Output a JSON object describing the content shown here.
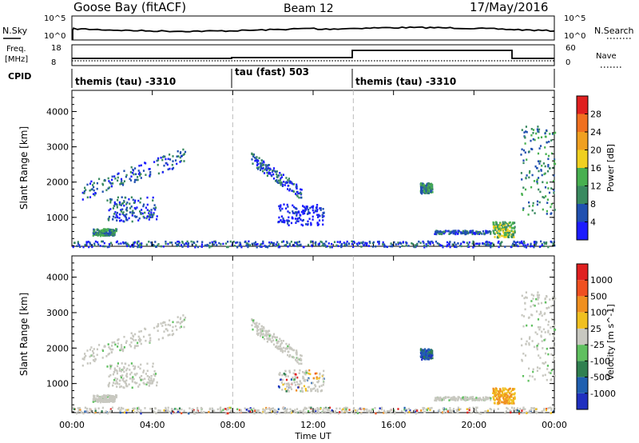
{
  "header": {
    "station": "Goose Bay (fitACF)",
    "beam": "Beam 12",
    "date": "17/May/2016"
  },
  "noise_panel": {
    "left_label": "N.Sky",
    "right_label": "N.Search",
    "left_ticks": [
      "10^5",
      "10^0"
    ],
    "right_ticks": [
      "10^5",
      "10^0"
    ]
  },
  "freq_panel": {
    "left_label_1": "Freq.",
    "left_label_2": "[MHz]",
    "right_label": "Nave",
    "left_ticks": [
      "18",
      "8"
    ],
    "right_ticks": [
      "60",
      "0"
    ]
  },
  "cpid": {
    "label": "CPID",
    "segments": [
      {
        "start_hour": 0,
        "text": "themis (tau) -3310"
      },
      {
        "start_hour": 8,
        "text": "tau (fast) 503"
      },
      {
        "start_hour": 14,
        "text": "themis (tau) -3310"
      }
    ]
  },
  "chart_data": [
    {
      "type": "heatmap",
      "name": "power",
      "ylabel": "Slant Range [km]",
      "y_ticks": [
        1000,
        2000,
        3000,
        4000
      ],
      "ylim": [
        180,
        4600
      ],
      "x_range_hours": [
        0,
        24
      ],
      "colorbar": {
        "label": "Power [dB]",
        "ticks": [
          "4",
          "8",
          "12",
          "16",
          "20",
          "24",
          "28"
        ],
        "colors": [
          "#1c1cff",
          "#2050b0",
          "#3a8a60",
          "#48b050",
          "#f0d020",
          "#f0a020",
          "#f07020",
          "#e02020"
        ]
      },
      "echo_regions": [
        {
          "t": [
            0.5,
            5.6
          ],
          "r": [
            1600,
            3000
          ],
          "level": 1
        },
        {
          "t": [
            1.0,
            2.2
          ],
          "r": [
            500,
            700
          ],
          "level": 2
        },
        {
          "t": [
            1.7,
            4.2
          ],
          "r": [
            900,
            1600
          ],
          "level": 1
        },
        {
          "t": [
            8.9,
            11.4
          ],
          "r": [
            1500,
            2800
          ],
          "level": 1
        },
        {
          "t": [
            10.2,
            12.5
          ],
          "r": [
            800,
            1400
          ],
          "level": 0
        },
        {
          "t": [
            17.3,
            17.9
          ],
          "r": [
            1700,
            2000
          ],
          "level": 2
        },
        {
          "t": [
            18.0,
            20.8
          ],
          "r": [
            550,
            650
          ],
          "level": 1
        },
        {
          "t": [
            20.9,
            22.0
          ],
          "r": [
            450,
            900
          ],
          "level": 3
        },
        {
          "t": [
            22.3,
            24.0
          ],
          "r": [
            1100,
            3600
          ],
          "level": 2
        },
        {
          "t": [
            0.0,
            24.0
          ],
          "r": [
            180,
            350
          ],
          "level": 1
        }
      ]
    },
    {
      "type": "heatmap",
      "name": "velocity",
      "ylabel": "Slant Range [km]",
      "xlabel": "Time UT",
      "y_ticks": [
        1000,
        2000,
        3000,
        4000
      ],
      "ylim": [
        180,
        4600
      ],
      "x_ticks": [
        "00:00",
        "04:00",
        "08:00",
        "12:00",
        "16:00",
        "20:00",
        "00:00"
      ],
      "colorbar": {
        "label": "Velocity [m s^-1]",
        "ticks": [
          "1000",
          "500",
          "100",
          "25",
          "-25",
          "-100",
          "-500",
          "-1000"
        ],
        "colors": [
          "#2030c0",
          "#2060b0",
          "#308050",
          "#60c060",
          "#c8c8c0",
          "#f0c020",
          "#f09020",
          "#f05020",
          "#e02020"
        ]
      }
    }
  ]
}
